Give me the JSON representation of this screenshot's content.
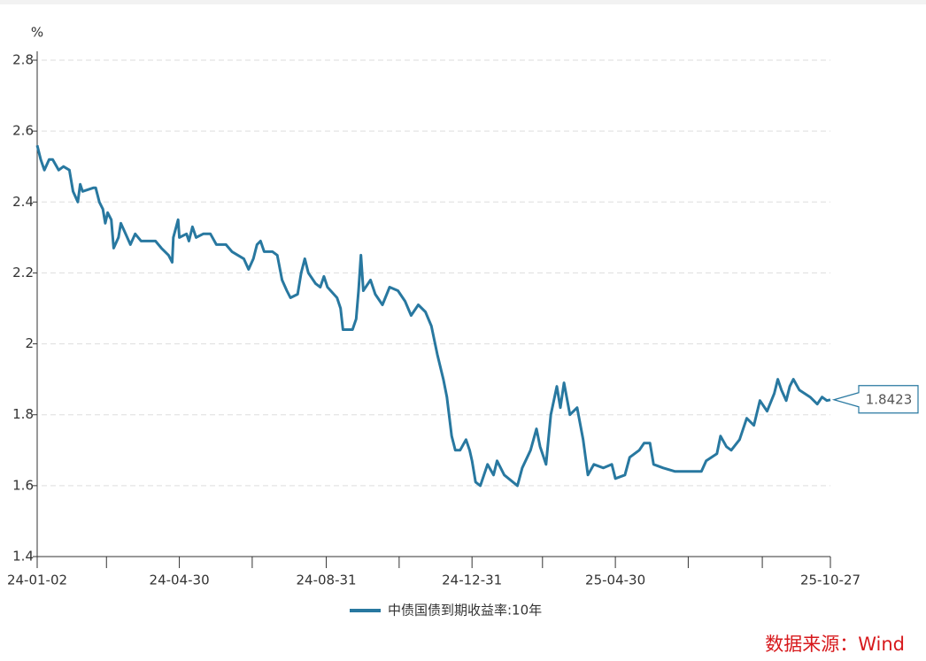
{
  "chart_data": {
    "type": "line",
    "unit": "%",
    "source": "数据来源：Wind",
    "ylim": [
      1.4,
      2.8
    ],
    "yticks": [
      1.4,
      1.6,
      1.8,
      2,
      2.2,
      2.4,
      2.6,
      2.8
    ],
    "grid": true,
    "xlim": [
      "24-01-02",
      "25-10-27"
    ],
    "xticks": [
      {
        "value": "24-01-02",
        "label": "24-01-02"
      },
      {
        "value": "24-02-29",
        "label": null
      },
      {
        "value": "24-04-30",
        "label": "24-04-30"
      },
      {
        "value": "24-06-30",
        "label": null
      },
      {
        "value": "24-08-31",
        "label": "24-08-31"
      },
      {
        "value": "24-10-31",
        "label": null
      },
      {
        "value": "24-12-31",
        "label": "24-12-31"
      },
      {
        "value": "25-02-28",
        "label": null
      },
      {
        "value": "25-04-30",
        "label": "25-04-30"
      },
      {
        "value": "25-06-30",
        "label": null
      },
      {
        "value": "25-08-31",
        "label": null
      },
      {
        "value": "25-10-27",
        "label": "25-10-27"
      }
    ],
    "x": [
      "24-01-02",
      "24-01-05",
      "24-01-08",
      "24-01-12",
      "24-01-15",
      "24-01-20",
      "24-01-24",
      "24-01-29",
      "24-02-01",
      "24-02-05",
      "24-02-07",
      "24-02-09",
      "24-02-18",
      "24-02-20",
      "24-02-23",
      "24-02-26",
      "24-02-28",
      "24-03-01",
      "24-03-04",
      "24-03-06",
      "24-03-10",
      "24-03-12",
      "24-03-16",
      "24-03-20",
      "24-03-24",
      "24-03-29",
      "24-04-04",
      "24-04-10",
      "24-04-15",
      "24-04-21",
      "24-04-24",
      "24-04-25",
      "24-04-29",
      "24-04-30",
      "24-05-06",
      "24-05-08",
      "24-05-11",
      "24-05-14",
      "24-05-20",
      "24-05-26",
      "24-05-31",
      "24-06-08",
      "24-06-13",
      "24-06-18",
      "24-06-23",
      "24-06-27",
      "24-07-01",
      "24-07-04",
      "24-07-07",
      "24-07-10",
      "24-07-17",
      "24-07-21",
      "24-07-25",
      "24-07-29",
      "24-08-01",
      "24-08-07",
      "24-08-10",
      "24-08-13",
      "24-08-16",
      "24-08-22",
      "24-08-26",
      "24-08-29",
      "24-09-01",
      "24-09-09",
      "24-09-12",
      "24-09-14",
      "24-09-22",
      "24-09-25",
      "24-09-27",
      "24-09-29",
      "24-10-01",
      "24-10-07",
      "24-10-11",
      "24-10-17",
      "24-10-23",
      "24-10-30",
      "24-11-05",
      "24-11-10",
      "24-11-16",
      "24-11-22",
      "24-11-27",
      "24-12-02",
      "24-12-07",
      "24-12-10",
      "24-12-14",
      "24-12-17",
      "24-12-21",
      "24-12-26",
      "24-12-29",
      "24-12-31",
      "25-01-03",
      "25-01-07",
      "25-01-13",
      "25-01-18",
      "25-01-21",
      "25-01-27",
      "25-02-07",
      "25-02-11",
      "25-02-18",
      "25-02-23",
      "25-02-26",
      "25-03-03",
      "25-03-07",
      "25-03-12",
      "25-03-15",
      "25-03-18",
      "25-03-23",
      "25-03-29",
      "25-04-03",
      "25-04-07",
      "25-04-12",
      "25-04-20",
      "25-04-27",
      "25-04-30",
      "25-05-08",
      "25-05-12",
      "25-05-20",
      "25-05-24",
      "25-05-29",
      "25-06-01",
      "25-06-09",
      "25-06-19",
      "25-07-01",
      "25-07-11",
      "25-07-15",
      "25-07-24",
      "25-07-27",
      "25-08-01",
      "25-08-05",
      "25-08-12",
      "25-08-18",
      "25-08-24",
      "25-08-29",
      "25-09-04",
      "25-09-10",
      "25-09-13",
      "25-09-16",
      "25-09-20",
      "25-09-23",
      "25-09-26",
      "25-10-01",
      "25-10-10",
      "25-10-16",
      "25-10-20",
      "25-10-24",
      "25-10-27"
    ],
    "series": [
      {
        "name": "中债国债到期收益率:10年",
        "color": "#2878a0",
        "values": [
          2.56,
          2.52,
          2.49,
          2.52,
          2.52,
          2.49,
          2.5,
          2.49,
          2.43,
          2.4,
          2.45,
          2.43,
          2.44,
          2.44,
          2.4,
          2.38,
          2.34,
          2.37,
          2.35,
          2.27,
          2.3,
          2.34,
          2.31,
          2.28,
          2.31,
          2.29,
          2.29,
          2.29,
          2.27,
          2.25,
          2.23,
          2.3,
          2.35,
          2.3,
          2.31,
          2.29,
          2.33,
          2.3,
          2.31,
          2.31,
          2.28,
          2.28,
          2.26,
          2.25,
          2.24,
          2.21,
          2.24,
          2.28,
          2.29,
          2.26,
          2.26,
          2.25,
          2.18,
          2.15,
          2.13,
          2.14,
          2.2,
          2.24,
          2.2,
          2.17,
          2.16,
          2.19,
          2.16,
          2.13,
          2.1,
          2.04,
          2.04,
          2.07,
          2.15,
          2.25,
          2.15,
          2.18,
          2.14,
          2.11,
          2.16,
          2.15,
          2.12,
          2.08,
          2.11,
          2.09,
          2.05,
          1.97,
          1.9,
          1.85,
          1.74,
          1.7,
          1.7,
          1.73,
          1.7,
          1.67,
          1.61,
          1.6,
          1.66,
          1.63,
          1.67,
          1.63,
          1.6,
          1.65,
          1.7,
          1.76,
          1.71,
          1.66,
          1.8,
          1.88,
          1.82,
          1.89,
          1.8,
          1.82,
          1.73,
          1.63,
          1.66,
          1.65,
          1.66,
          1.62,
          1.63,
          1.68,
          1.7,
          1.72,
          1.72,
          1.66,
          1.65,
          1.64,
          1.64,
          1.64,
          1.67,
          1.69,
          1.74,
          1.71,
          1.7,
          1.73,
          1.79,
          1.77,
          1.84,
          1.81,
          1.86,
          1.9,
          1.87,
          1.84,
          1.88,
          1.9,
          1.87,
          1.85,
          1.83,
          1.85,
          1.84,
          1.8423
        ],
        "end_label": "1.8423"
      }
    ]
  }
}
